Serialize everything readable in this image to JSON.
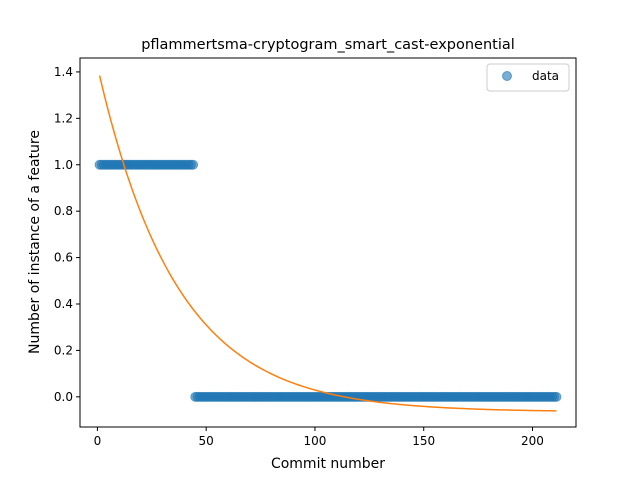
{
  "chart_data": {
    "type": "scatter",
    "title": "pflammertsma-cryptogram_smart_cast-exponential",
    "xlabel": "Commit number",
    "ylabel": "Number of instance of a feature",
    "xlim": [
      -8,
      220
    ],
    "ylim": [
      -0.13,
      1.46
    ],
    "xticks": [
      0,
      50,
      100,
      150,
      200
    ],
    "yticks": [
      0.0,
      0.2,
      0.4,
      0.6,
      0.8,
      1.0,
      1.2,
      1.4
    ],
    "xtick_labels": [
      "0",
      "50",
      "100",
      "150",
      "200"
    ],
    "ytick_labels": [
      "0.0",
      "0.2",
      "0.4",
      "0.6",
      "0.8",
      "1.0",
      "1.2",
      "1.4"
    ],
    "legend": {
      "position": "top-right",
      "entries": [
        "data"
      ]
    },
    "grid": false,
    "series": [
      {
        "name": "data",
        "kind": "scatter",
        "color": "#1f77b4",
        "segments": [
          {
            "x_start": 1,
            "x_end": 44,
            "y": 1
          },
          {
            "x_start": 45,
            "x_end": 211,
            "y": 0
          }
        ]
      },
      {
        "kind": "line",
        "color": "#ff7f0e",
        "model": "exponential",
        "params": {
          "a": 1.49,
          "b": 0.0276,
          "c": -0.065
        },
        "x_range": [
          1,
          211
        ]
      }
    ]
  }
}
